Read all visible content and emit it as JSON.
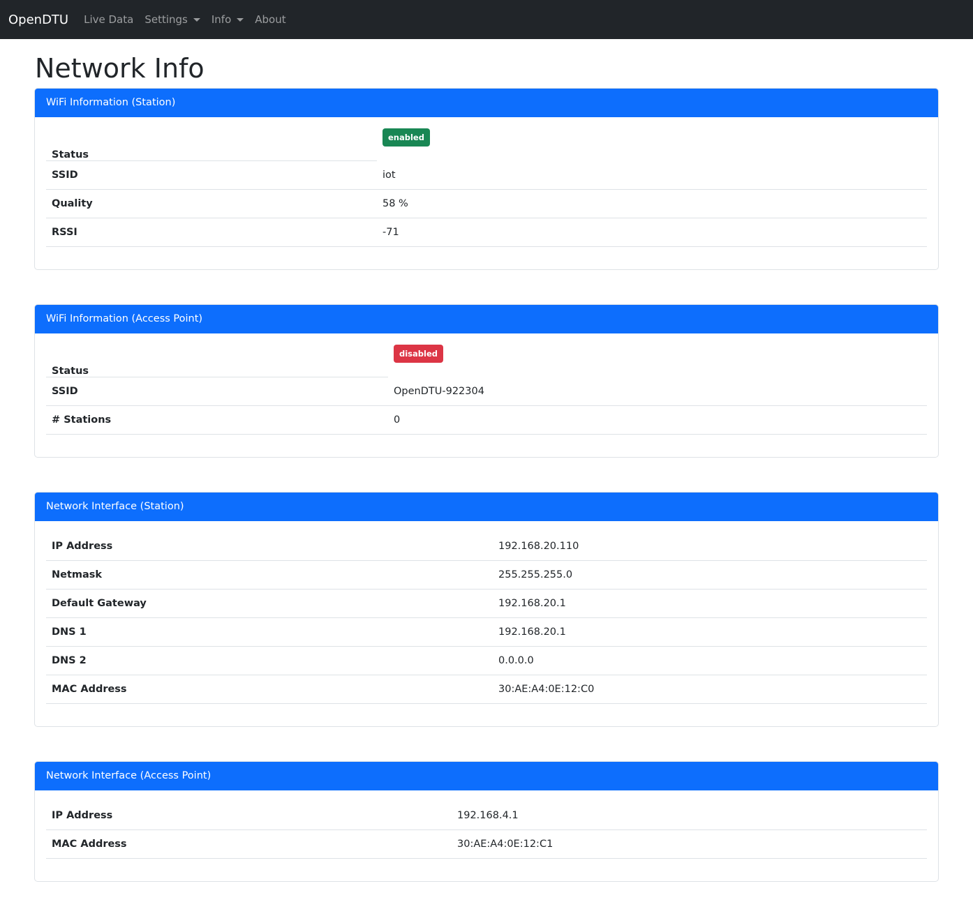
{
  "navbar": {
    "brand": "OpenDTU",
    "items": [
      {
        "label": "Live Data"
      },
      {
        "label": "Settings",
        "dropdown": true
      },
      {
        "label": "Info",
        "dropdown": true
      },
      {
        "label": "About"
      }
    ]
  },
  "page_title": "Network Info",
  "colors": {
    "primary": "#0d6efd",
    "success": "#198754",
    "danger": "#dc3545",
    "navbar": "#212529"
  },
  "wifi_station": {
    "title": "WiFi Information (Station)",
    "status_label": "Status",
    "status": "enabled",
    "rows": [
      {
        "label": "SSID",
        "value": "iot"
      },
      {
        "label": "Quality",
        "value": "58 %"
      },
      {
        "label": "RSSI",
        "value": "-71"
      }
    ]
  },
  "wifi_ap": {
    "title": "WiFi Information (Access Point)",
    "status_label": "Status",
    "status": "disabled",
    "rows": [
      {
        "label": "SSID",
        "value": "OpenDTU-922304"
      },
      {
        "label": "# Stations",
        "value": "0"
      }
    ]
  },
  "net_station": {
    "title": "Network Interface (Station)",
    "rows": [
      {
        "label": "IP Address",
        "value": "192.168.20.110"
      },
      {
        "label": "Netmask",
        "value": "255.255.255.0"
      },
      {
        "label": "Default Gateway",
        "value": "192.168.20.1"
      },
      {
        "label": "DNS 1",
        "value": "192.168.20.1"
      },
      {
        "label": "DNS 2",
        "value": "0.0.0.0"
      },
      {
        "label": "MAC Address",
        "value": "30:AE:A4:0E:12:C0"
      }
    ]
  },
  "net_ap": {
    "title": "Network Interface (Access Point)",
    "rows": [
      {
        "label": "IP Address",
        "value": "192.168.4.1"
      },
      {
        "label": "MAC Address",
        "value": "30:AE:A4:0E:12:C1"
      }
    ]
  }
}
